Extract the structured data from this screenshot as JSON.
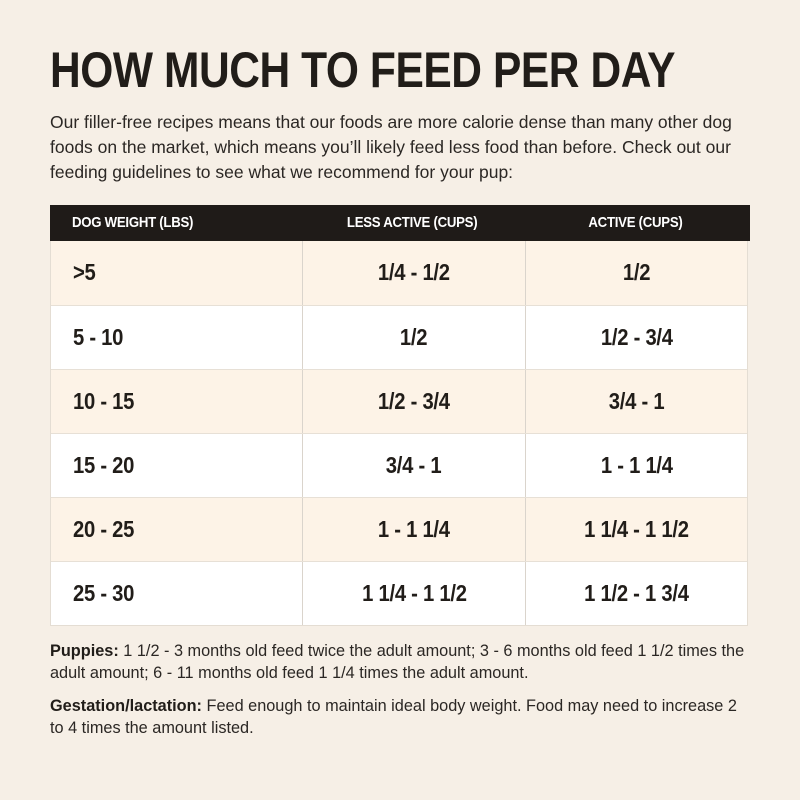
{
  "page": {
    "title": "HOW MUCH TO FEED PER DAY",
    "intro": "Our filler-free recipes means that our foods are more calorie dense than many other dog foods on the market, which means you’ll likely feed less food than before. Check out our feeding guidelines to see what we recommend for your pup:"
  },
  "table": {
    "headers": [
      "DOG WEIGHT (LBS)",
      "LESS ACTIVE (CUPS)",
      "ACTIVE (CUPS)"
    ],
    "rows": [
      [
        ">5",
        "1/4 - 1/2",
        "1/2"
      ],
      [
        "5 - 10",
        "1/2",
        "1/2 - 3/4"
      ],
      [
        "10 - 15",
        "1/2 - 3/4",
        "3/4 - 1"
      ],
      [
        "15 - 20",
        "3/4 - 1",
        "1 - 1 1/4"
      ],
      [
        "20 - 25",
        "1 - 1 1/4",
        "1 1/4 - 1 1/2"
      ],
      [
        "25 - 30",
        "1 1/4 - 1 1/2",
        "1 1/2 - 1 3/4"
      ]
    ]
  },
  "notes": [
    {
      "label": "Puppies:",
      "text": " 1 1/2 - 3 months old feed twice the adult amount; 3 - 6 months old feed 1 1/2 times the adult amount; 6 - 11 months old feed 1 1/4 times the adult amount."
    },
    {
      "label": "Gestation/lactation:",
      "text": " Feed enough to maintain ideal body weight. Food may need to increase 2 to 4 times the amount listed."
    }
  ],
  "colors": {
    "page_background": "#f6efe6",
    "header_background": "#1f1b18",
    "header_text": "#ffffff",
    "row_cream": "#fdf3e7",
    "row_white": "#ffffff",
    "text": "#211d19"
  }
}
